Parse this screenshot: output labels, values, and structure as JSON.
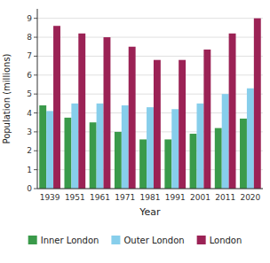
{
  "chart_data": {
    "type": "bar",
    "xlabel": "Year",
    "ylabel": "Population (millions)",
    "categories": [
      "1939",
      "1951",
      "1961",
      "1971",
      "1981",
      "1991",
      "2001",
      "2011",
      "2020"
    ],
    "series": [
      {
        "name": "Inner London",
        "color": "#3a9a4a",
        "values": [
          4.4,
          3.75,
          3.5,
          3.0,
          2.6,
          2.6,
          2.9,
          3.2,
          3.7
        ]
      },
      {
        "name": "Outer London",
        "color": "#87ceeb",
        "values": [
          4.1,
          4.5,
          4.5,
          4.4,
          4.3,
          4.2,
          4.5,
          5.0,
          5.3
        ]
      },
      {
        "name": "London",
        "color": "#9b2255",
        "values": [
          8.6,
          8.2,
          8.0,
          7.5,
          6.8,
          6.8,
          7.35,
          8.2,
          9.0
        ]
      }
    ],
    "ylim": [
      0,
      9.5
    ],
    "yticks": [
      0,
      1,
      2,
      3,
      4,
      5,
      6,
      7,
      8,
      9
    ],
    "grid": true,
    "legend": "bottom"
  }
}
